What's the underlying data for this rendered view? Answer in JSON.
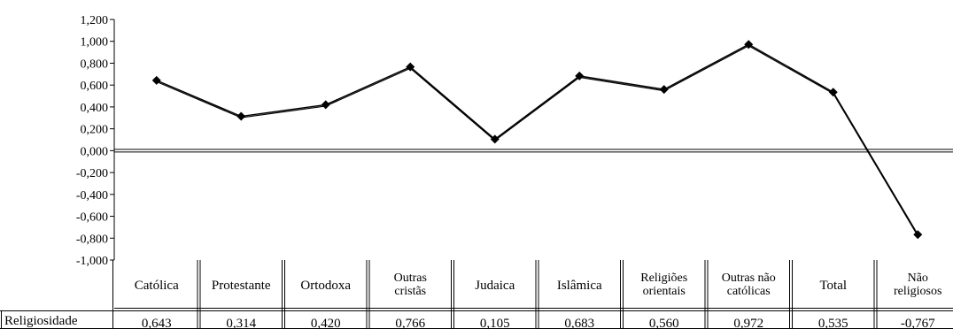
{
  "chart_data": {
    "type": "line",
    "categories": [
      [
        "Católica"
      ],
      [
        "Protestante"
      ],
      [
        "Ortodoxa"
      ],
      [
        "Outras",
        "cristãs"
      ],
      [
        "Judaica"
      ],
      [
        "Islâmica"
      ],
      [
        "Religiões",
        "orientais"
      ],
      [
        "Outras não",
        "católicas"
      ],
      [
        "Total"
      ],
      [
        "Não",
        "religiosos"
      ]
    ],
    "series": [
      {
        "name": "Religiosidade",
        "values": [
          0.643,
          0.314,
          0.42,
          0.766,
          0.105,
          0.683,
          0.56,
          0.972,
          0.535,
          -0.767
        ],
        "labels": [
          "0,643",
          "0,314",
          "0,420",
          "0,766",
          "0,105",
          "0,683",
          "0,560",
          "0,972",
          "0,535",
          "-0,767"
        ]
      }
    ],
    "ylim": [
      -1.0,
      1.2
    ],
    "ytick_values": [
      1.2,
      1.0,
      0.8,
      0.6,
      0.4,
      0.2,
      0.0,
      -0.2,
      -0.4,
      -0.6,
      -0.8,
      -1.0
    ],
    "ytick_labels": [
      "1,200",
      "1,000",
      "0,800",
      "0,600",
      "0,400",
      "0,200",
      "0,000",
      "-0,200",
      "-0,400",
      "-0,600",
      "-0,800",
      "-1,000"
    ],
    "title": "",
    "xlabel": "",
    "ylabel": "",
    "grid": false,
    "legend": "data-table-row"
  }
}
